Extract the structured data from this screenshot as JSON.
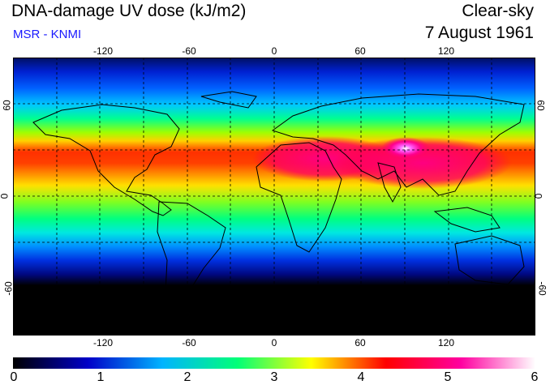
{
  "header": {
    "title": "DNA-damage UV dose (kJ/m2)",
    "subtitle": "MSR - KNMI",
    "mode": "Clear-sky",
    "date": "7 August 1961"
  },
  "map": {
    "lon_ticks": [
      "-120",
      "-60",
      "0",
      "60",
      "120"
    ],
    "lat_ticks": [
      "60",
      "0",
      "-60"
    ],
    "lon_range": [
      -180,
      180
    ],
    "lat_range": [
      -90,
      90
    ],
    "grid": "dashed, every 30 degrees"
  },
  "colorbar": {
    "labels": [
      "0",
      "1",
      "2",
      "3",
      "4",
      "5",
      "6"
    ],
    "range": [
      0,
      6
    ],
    "stops": [
      "#000000",
      "#0000c8",
      "#00b4ff",
      "#00ff78",
      "#ffff00",
      "#ff0000",
      "#ff00a0",
      "#ffffff"
    ]
  }
}
